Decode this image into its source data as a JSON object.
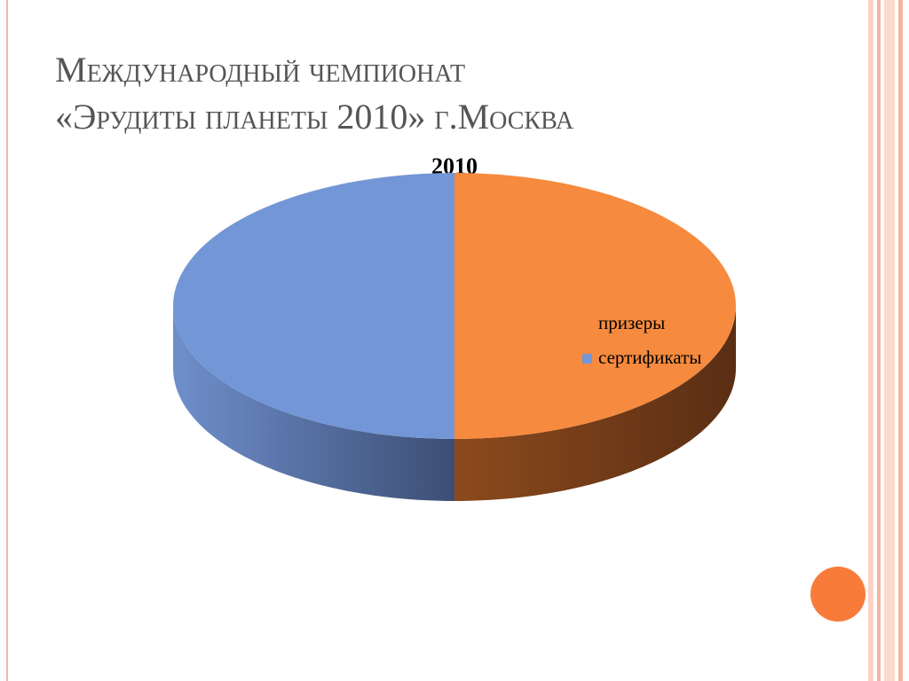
{
  "slide": {
    "title_lines": [
      "Международный чемпионат",
      "«Эрудиты планеты 2010» г.Москва"
    ]
  },
  "chart_data": {
    "type": "pie3d",
    "title": "2010",
    "categories": [
      "призеры",
      "сертификаты"
    ],
    "values": [
      50,
      50
    ],
    "colors": [
      "#f68a3e",
      "#7396d6"
    ],
    "legend": "right"
  }
}
